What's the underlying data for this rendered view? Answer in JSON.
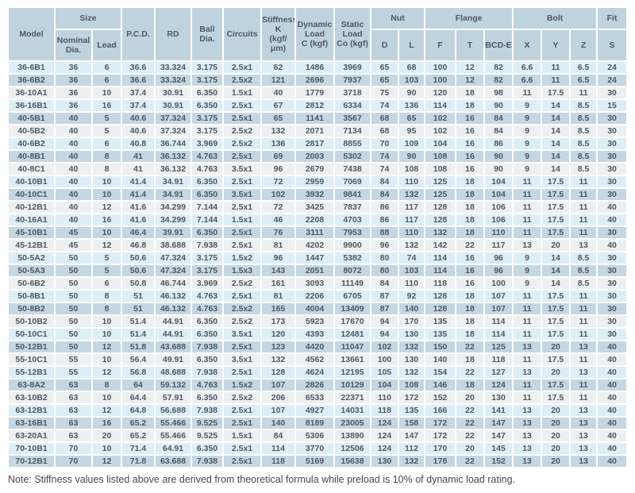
{
  "colors": {
    "header_bg": "#bfd3df",
    "row_blue_light": "#deeef7",
    "row_blue_medium": "#c4d7e3",
    "row_gray": "#eeeff0",
    "text": "#4d5863",
    "note_text": "#474747"
  },
  "table": {
    "header": {
      "model": "Model",
      "size": "Size",
      "nominal_dia": "Nominal\nDia.",
      "lead": "Lead",
      "pcd": "P.C.D.",
      "rd": "RD",
      "ball_dia": "Ball\nDia.",
      "circuits": "Circuits",
      "stiffness_k": "Stiffness\nK\n(kgf/μm)",
      "dynamic_load_c": "Dynamic\nLoad\nC (kgf)",
      "static_load_co": "Static\nLoad\nCo (kgf)",
      "nut": "Nut",
      "nut_d": "D",
      "nut_l": "L",
      "flange": "Flange",
      "flange_f": "F",
      "flange_t": "T",
      "flange_bcd_e": "BCD-E",
      "bolt": "Bolt",
      "bolt_x": "X",
      "bolt_y": "Y",
      "bolt_z": "Z",
      "fit": "Fit",
      "fit_s": "S"
    },
    "columns": [
      "model",
      "nominal-dia",
      "lead",
      "pcd",
      "rd",
      "ball-dia",
      "circuits",
      "stiffness-k",
      "dynamic-load-c",
      "static-load-co",
      "nut-d",
      "nut-l",
      "flange-f",
      "flange-t",
      "flange-bcd-e",
      "bolt-x",
      "bolt-y",
      "bolt-z",
      "fit-s"
    ],
    "rows": [
      [
        "36-6B1",
        "36",
        "6",
        "36.6",
        "33.324",
        "3.175",
        "2.5x1",
        "62",
        "1486",
        "3969",
        "65",
        "68",
        "100",
        "12",
        "82",
        "6.6",
        "11",
        "6.5",
        "24"
      ],
      [
        "36-6B2",
        "36",
        "6",
        "36.6",
        "33.324",
        "3.175",
        "2.5x2",
        "121",
        "2696",
        "7937",
        "65",
        "103",
        "100",
        "12",
        "82",
        "6.6",
        "11",
        "6.5",
        "24"
      ],
      [
        "36-10A1",
        "36",
        "10",
        "37.4",
        "30.91",
        "6.350",
        "1.5x1",
        "40",
        "1779",
        "3718",
        "75",
        "90",
        "120",
        "18",
        "98",
        "11",
        "17.5",
        "11",
        "30"
      ],
      [
        "36-16B1",
        "36",
        "16",
        "37.4",
        "30.91",
        "6.350",
        "2.5x1",
        "67",
        "2812",
        "6334",
        "74",
        "136",
        "114",
        "18",
        "90",
        "9",
        "14",
        "8.5",
        "15"
      ],
      [
        "40-5B1",
        "40",
        "5",
        "40.6",
        "37.324",
        "3.175",
        "2.5x1",
        "65",
        "1141",
        "3567",
        "68",
        "65",
        "102",
        "16",
        "84",
        "9",
        "14",
        "8.5",
        "30"
      ],
      [
        "40-5B2",
        "40",
        "5",
        "40.6",
        "37.324",
        "3.175",
        "2.5x2",
        "132",
        "2071",
        "7134",
        "68",
        "95",
        "102",
        "16",
        "84",
        "9",
        "14",
        "8.5",
        "30"
      ],
      [
        "40-6B2",
        "40",
        "6",
        "40.8",
        "36.744",
        "3.969",
        "2.5x2",
        "136",
        "2817",
        "8855",
        "70",
        "109",
        "104",
        "16",
        "86",
        "9",
        "14",
        "8.5",
        "30"
      ],
      [
        "40-8B1",
        "40",
        "8",
        "41",
        "36.132",
        "4.763",
        "2.5x1",
        "69",
        "2003",
        "5302",
        "74",
        "90",
        "108",
        "16",
        "90",
        "9",
        "14",
        "8.5",
        "30"
      ],
      [
        "40-8C1",
        "40",
        "8",
        "41",
        "36.132",
        "4.763",
        "3.5x1",
        "96",
        "2679",
        "7438",
        "74",
        "108",
        "108",
        "16",
        "90",
        "9",
        "14",
        "8.5",
        "30"
      ],
      [
        "40-10B1",
        "40",
        "10",
        "41.4",
        "34.91",
        "6.350",
        "2.5x1",
        "72",
        "2959",
        "7069",
        "84",
        "110",
        "125",
        "18",
        "104",
        "11",
        "17.5",
        "11",
        "30"
      ],
      [
        "40-10C1",
        "40",
        "10",
        "41.4",
        "34.91",
        "6.350",
        "3.5x1",
        "102",
        "3932",
        "9841",
        "84",
        "132",
        "125",
        "18",
        "104",
        "11",
        "17.5",
        "11",
        "30"
      ],
      [
        "40-12B1",
        "40",
        "12",
        "41.6",
        "34.299",
        "7.144",
        "2.5x1",
        "72",
        "3425",
        "7837",
        "86",
        "117",
        "128",
        "18",
        "106",
        "11",
        "17.5",
        "11",
        "40"
      ],
      [
        "40-16A1",
        "40",
        "16",
        "41.6",
        "34.299",
        "7.144",
        "1.5x1",
        "46",
        "2208",
        "4703",
        "86",
        "117",
        "128",
        "18",
        "106",
        "11",
        "17.5",
        "11",
        "40"
      ],
      [
        "45-10B1",
        "45",
        "10",
        "46.4",
        "39.91",
        "6.350",
        "2.5x1",
        "76",
        "3111",
        "7953",
        "88",
        "110",
        "132",
        "18",
        "110",
        "11",
        "17.5",
        "11",
        "30"
      ],
      [
        "45-12B1",
        "45",
        "12",
        "46.8",
        "38.688",
        "7.938",
        "2.5x1",
        "81",
        "4202",
        "9900",
        "96",
        "132",
        "142",
        "22",
        "117",
        "13",
        "20",
        "13",
        "40"
      ],
      [
        "50-5A2",
        "50",
        "5",
        "50.6",
        "47.324",
        "3.175",
        "1.5x2",
        "96",
        "1447",
        "5382",
        "80",
        "74",
        "114",
        "16",
        "96",
        "9",
        "14",
        "8.5",
        "30"
      ],
      [
        "50-5A3",
        "50",
        "5",
        "50.6",
        "47.324",
        "3.175",
        "1.5x3",
        "143",
        "2051",
        "8072",
        "80",
        "103",
        "114",
        "16",
        "96",
        "9",
        "14",
        "8.5",
        "30"
      ],
      [
        "50-6B2",
        "50",
        "6",
        "50.8",
        "46.744",
        "3.969",
        "2.5x2",
        "161",
        "3093",
        "11149",
        "84",
        "110",
        "118",
        "16",
        "100",
        "9",
        "14",
        "8.5",
        "30"
      ],
      [
        "50-8B1",
        "50",
        "8",
        "51",
        "46.132",
        "4.763",
        "2.5x1",
        "81",
        "2206",
        "6705",
        "87",
        "92",
        "128",
        "18",
        "107",
        "11",
        "17.5",
        "11",
        "30"
      ],
      [
        "50-8B2",
        "50",
        "8",
        "51",
        "46.132",
        "4.763",
        "2.5x2",
        "165",
        "4004",
        "13409",
        "87",
        "140",
        "128",
        "18",
        "107",
        "11",
        "17.5",
        "11",
        "30"
      ],
      [
        "50-10B2",
        "50",
        "10",
        "51.4",
        "44.91",
        "6.350",
        "2.5x2",
        "173",
        "5923",
        "17670",
        "94",
        "170",
        "135",
        "18",
        "114",
        "11",
        "17.5",
        "11",
        "30"
      ],
      [
        "50-10C1",
        "50",
        "10",
        "51.4",
        "44.91",
        "6.350",
        "3.5x1",
        "120",
        "4393",
        "12481",
        "94",
        "130",
        "135",
        "18",
        "114",
        "11",
        "17.5",
        "11",
        "30"
      ],
      [
        "50-12B1",
        "50",
        "12",
        "51.8",
        "43.688",
        "7.938",
        "2.5x1",
        "123",
        "4420",
        "11047",
        "102",
        "132",
        "150",
        "22",
        "125",
        "13",
        "20",
        "13",
        "40"
      ],
      [
        "55-10C1",
        "55",
        "10",
        "56.4",
        "49.91",
        "6.350",
        "3.5x1",
        "132",
        "4562",
        "13661",
        "100",
        "130",
        "140",
        "18",
        "118",
        "11",
        "17.5",
        "11",
        "40"
      ],
      [
        "55-12B1",
        "55",
        "12",
        "56.8",
        "48.688",
        "7.938",
        "2.5x1",
        "128",
        "4624",
        "12195",
        "105",
        "132",
        "154",
        "22",
        "127",
        "13",
        "20",
        "13",
        "40"
      ],
      [
        "63-8A2",
        "63",
        "8",
        "64",
        "59.132",
        "4.763",
        "1.5x2",
        "107",
        "2826",
        "10129",
        "104",
        "108",
        "146",
        "18",
        "124",
        "11",
        "17.5",
        "11",
        "40"
      ],
      [
        "63-10B2",
        "63",
        "10",
        "64.4",
        "57.91",
        "6.350",
        "2.5x2",
        "206",
        "6533",
        "22371",
        "110",
        "172",
        "152",
        "20",
        "130",
        "11",
        "17.5",
        "11",
        "40"
      ],
      [
        "63-12B1",
        "63",
        "12",
        "64.8",
        "56.688",
        "7.938",
        "2.5x1",
        "107",
        "4927",
        "14031",
        "118",
        "135",
        "166",
        "22",
        "141",
        "13",
        "20",
        "13",
        "40"
      ],
      [
        "63-16B1",
        "63",
        "16",
        "65.2",
        "55.466",
        "9.525",
        "2.5x1",
        "140",
        "8189",
        "23005",
        "124",
        "158",
        "172",
        "22",
        "147",
        "13",
        "20",
        "13",
        "40"
      ],
      [
        "63-20A1",
        "63",
        "20",
        "65.2",
        "55.466",
        "9.525",
        "1.5x1",
        "84",
        "5306",
        "13890",
        "124",
        "147",
        "172",
        "22",
        "147",
        "13",
        "20",
        "13",
        "40"
      ],
      [
        "70-10B1",
        "70",
        "10",
        "71.4",
        "64.91",
        "6.350",
        "2.5x1",
        "114",
        "3770",
        "12506",
        "124",
        "112",
        "170",
        "20",
        "145",
        "13",
        "20",
        "13",
        "40"
      ],
      [
        "70-12B1",
        "70",
        "12",
        "71.8",
        "63.688",
        "7.938",
        "2.5x1",
        "118",
        "5169",
        "15638",
        "130",
        "132",
        "178",
        "22",
        "152",
        "13",
        "20",
        "13",
        "40"
      ]
    ]
  },
  "note": "Note: Stiffness values listed above are derived from theoretical formula while preload is 10% of dynamic load rating."
}
